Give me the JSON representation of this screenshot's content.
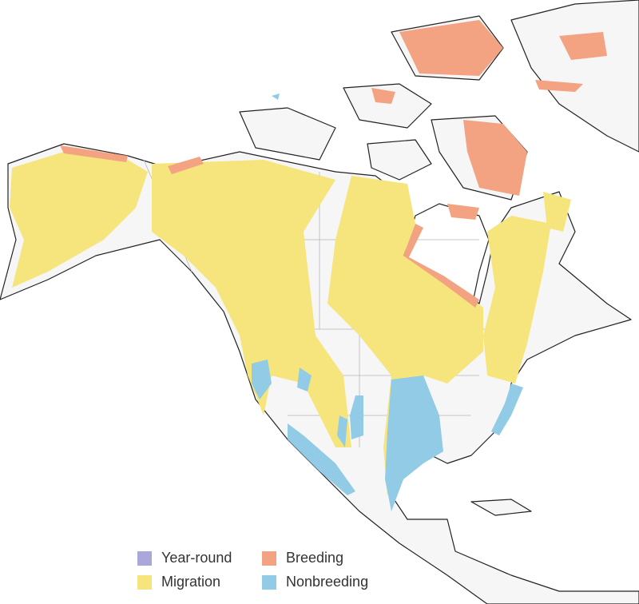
{
  "legend": [
    {
      "label": "Year-round",
      "color": "#aaa7da"
    },
    {
      "label": "Breeding",
      "color": "#f3a282"
    },
    {
      "label": "Migration",
      "color": "#f6e57c"
    },
    {
      "label": "Nonbreeding",
      "color": "#91cbe5"
    }
  ]
}
